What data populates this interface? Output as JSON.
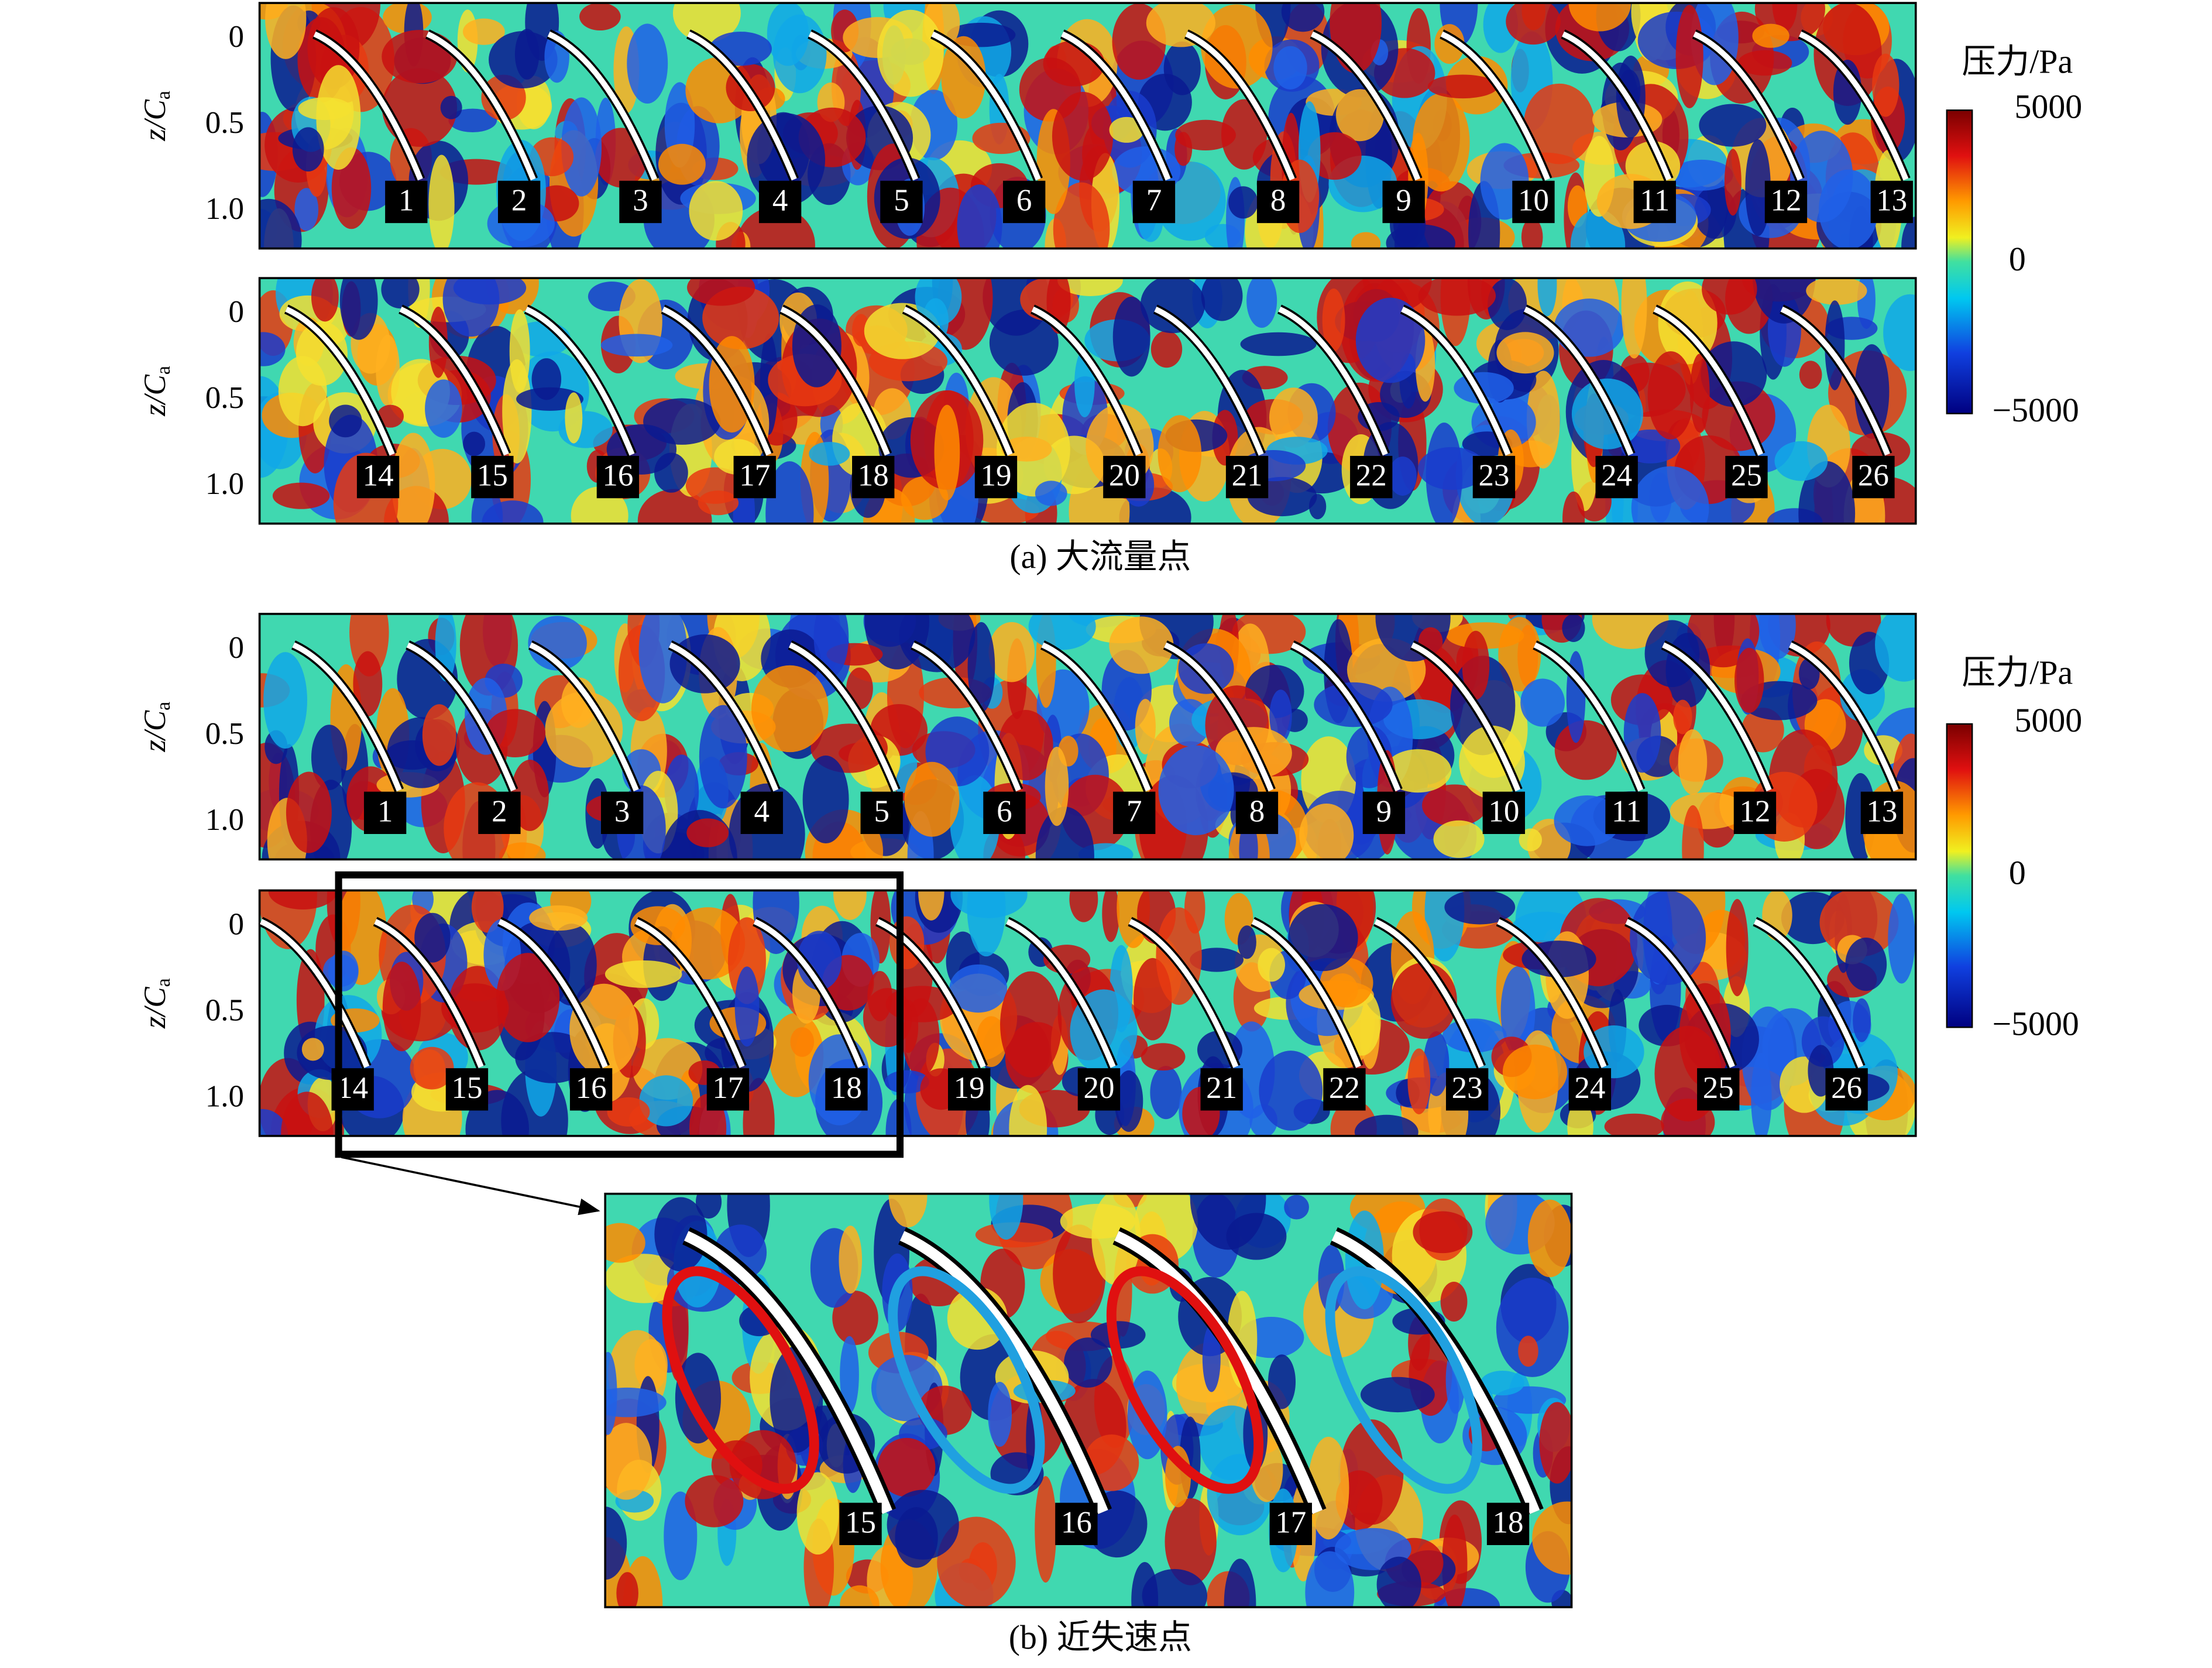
{
  "axis": {
    "label_main": "z/C",
    "label_sub": "a",
    "ticks": [
      "0",
      "0.5",
      "1.0"
    ]
  },
  "panels": [
    {
      "strips": [
        {
          "labels": [
            "1",
            "2",
            "3",
            "4",
            "5",
            "6",
            "7",
            "8",
            "9",
            "10",
            "11",
            "12",
            "13"
          ]
        },
        {
          "labels": [
            "14",
            "15",
            "16",
            "17",
            "18",
            "19",
            "20",
            "21",
            "22",
            "23",
            "24",
            "25",
            "26"
          ]
        }
      ],
      "caption": "(a) 大流量点",
      "colorbar": {
        "title": "压力/Pa",
        "ticks": [
          "5000",
          "0",
          "−5000"
        ]
      }
    },
    {
      "strips": [
        {
          "labels": [
            "1",
            "2",
            "3",
            "4",
            "5",
            "6",
            "7",
            "8",
            "9",
            "10",
            "11",
            "12",
            "13"
          ]
        },
        {
          "labels": [
            "14",
            "15",
            "16",
            "17",
            "18",
            "19",
            "20",
            "21",
            "22",
            "23",
            "24",
            "25",
            "26"
          ]
        }
      ],
      "caption": "(b) 近失速点",
      "colorbar": {
        "title": "压力/Pa",
        "ticks": [
          "5000",
          "0",
          "−5000"
        ]
      }
    }
  ],
  "zoom": {
    "labels": [
      "15",
      "16",
      "17",
      "18"
    ]
  }
}
